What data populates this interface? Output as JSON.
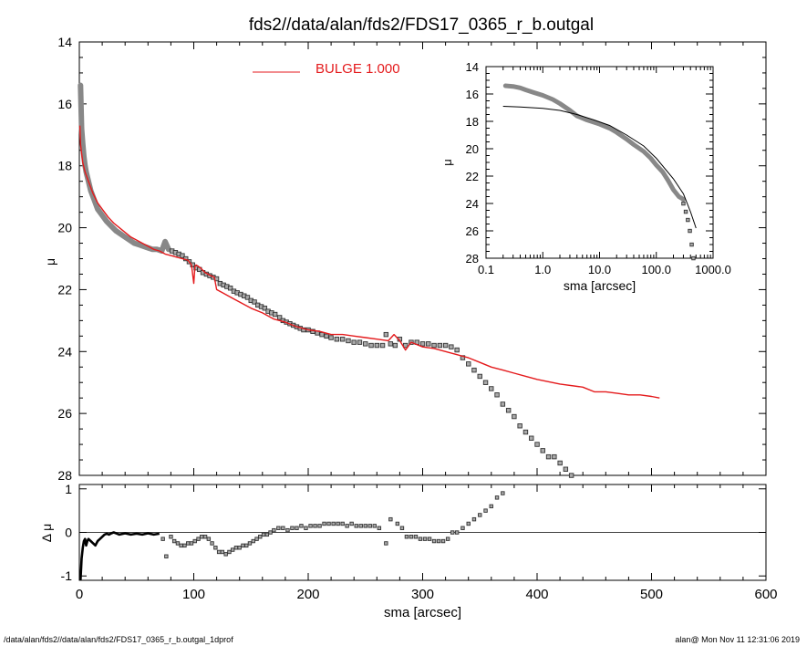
{
  "title": "fds2//data/alan/fds2/FDS17_0365_r_b.outgal",
  "footer": {
    "left": "/data/alan/fds2//data/alan/fds2/FDS17_0365_r_b.outgal_1dprof",
    "right": "alan@  Mon Nov 11 12:31:06 2019"
  },
  "chart_data": [
    {
      "type": "scatter",
      "name": "main",
      "xlabel": "sma [arcsec]",
      "ylabel": "μ",
      "xlim": [
        0,
        600
      ],
      "ylim": [
        28,
        14
      ],
      "x_ticks": [
        0,
        100,
        200,
        300,
        400,
        500,
        600
      ],
      "y_ticks": [
        14,
        16,
        18,
        20,
        22,
        24,
        26,
        28
      ],
      "legend": {
        "label": "BULGE  1.000",
        "color": "#e41a1c",
        "position": "top"
      },
      "colors": {
        "model": "#e41a1c",
        "data": "#555555",
        "marker_fill": "#aaaaaa"
      },
      "series": [
        {
          "kind": "data-points",
          "x": [
            1,
            2,
            3,
            4,
            5,
            6,
            8,
            10,
            13,
            16,
            20,
            24,
            28,
            32,
            36,
            40,
            44,
            48,
            52,
            56,
            60,
            64,
            68,
            72,
            75,
            78,
            81,
            84,
            87,
            90,
            93,
            96,
            99,
            102,
            105,
            108,
            111,
            114,
            117,
            120,
            123,
            126,
            129,
            132,
            135,
            138,
            141,
            144,
            147,
            150,
            153,
            156,
            159,
            162,
            165,
            168,
            171,
            175,
            178,
            181,
            184,
            187,
            190,
            193,
            196,
            200,
            204,
            208,
            212,
            216,
            220,
            225,
            230,
            235,
            240,
            245,
            250,
            255,
            260,
            265,
            268,
            272,
            276,
            280,
            285,
            290,
            295,
            300,
            305,
            310,
            315,
            320,
            325,
            330,
            335,
            340,
            345,
            350,
            355,
            360,
            365,
            370,
            375,
            380,
            385,
            390,
            395,
            400,
            405,
            410,
            415,
            420,
            425,
            430
          ],
          "y": [
            15.4,
            16.8,
            17.3,
            17.7,
            18.0,
            18.2,
            18.5,
            18.8,
            19.1,
            19.4,
            19.6,
            19.8,
            19.95,
            20.1,
            20.2,
            20.3,
            20.4,
            20.5,
            20.55,
            20.6,
            20.65,
            20.7,
            20.7,
            20.75,
            20.45,
            20.7,
            20.75,
            20.8,
            20.85,
            20.9,
            21.0,
            21.1,
            21.2,
            21.3,
            21.35,
            21.45,
            21.5,
            21.55,
            21.6,
            21.65,
            21.8,
            21.85,
            21.9,
            21.95,
            22.05,
            22.1,
            22.15,
            22.2,
            22.25,
            22.35,
            22.4,
            22.5,
            22.55,
            22.6,
            22.7,
            22.75,
            22.8,
            22.9,
            23.0,
            23.05,
            23.1,
            23.15,
            23.2,
            23.25,
            23.3,
            23.3,
            23.35,
            23.4,
            23.45,
            23.5,
            23.55,
            23.6,
            23.6,
            23.65,
            23.7,
            23.7,
            23.75,
            23.8,
            23.8,
            23.8,
            23.45,
            23.75,
            23.8,
            23.6,
            23.8,
            23.7,
            23.7,
            23.75,
            23.75,
            23.8,
            23.8,
            23.8,
            23.85,
            23.95,
            24.2,
            24.4,
            24.6,
            24.8,
            25.0,
            25.2,
            25.4,
            25.7,
            25.9,
            26.1,
            26.4,
            26.6,
            26.8,
            27.0,
            27.2,
            27.4,
            27.4,
            27.6,
            27.8,
            28.0
          ]
        },
        {
          "kind": "model",
          "x": [
            0.5,
            1,
            2,
            3,
            5,
            8,
            12,
            16,
            20,
            25,
            30,
            35,
            40,
            45,
            50,
            55,
            60,
            65,
            70,
            75,
            80,
            85,
            90,
            95,
            98,
            100,
            101,
            102,
            104,
            106,
            110,
            115,
            118,
            120,
            125,
            130,
            140,
            150,
            160,
            170,
            180,
            190,
            200,
            210,
            220,
            230,
            240,
            250,
            260,
            270,
            275,
            280,
            285,
            290,
            300,
            310,
            320,
            330,
            340,
            350,
            360,
            370,
            380,
            390,
            400,
            420,
            440,
            450,
            460,
            470,
            480,
            490,
            500,
            507
          ],
          "y": [
            16.7,
            17.3,
            17.6,
            17.9,
            18.2,
            18.5,
            18.9,
            19.2,
            19.4,
            19.65,
            19.85,
            20.0,
            20.15,
            20.3,
            20.4,
            20.5,
            20.6,
            20.7,
            20.75,
            20.85,
            20.9,
            20.95,
            21.0,
            21.05,
            21.2,
            21.8,
            21.25,
            21.2,
            21.25,
            21.3,
            21.45,
            21.55,
            21.6,
            22.0,
            22.1,
            22.2,
            22.4,
            22.6,
            22.75,
            22.95,
            23.05,
            23.2,
            23.3,
            23.35,
            23.45,
            23.45,
            23.5,
            23.55,
            23.6,
            23.65,
            23.45,
            23.65,
            23.95,
            23.7,
            23.85,
            23.9,
            24.0,
            24.1,
            24.2,
            24.35,
            24.5,
            24.6,
            24.7,
            24.8,
            24.9,
            25.05,
            25.15,
            25.3,
            25.3,
            25.35,
            25.4,
            25.4,
            25.45,
            25.5
          ]
        }
      ]
    },
    {
      "type": "scatter",
      "name": "residual",
      "xlabel": "sma [arcsec]",
      "ylabel": "Δ μ",
      "xlim": [
        0,
        600
      ],
      "ylim": [
        -1.1,
        1.1
      ],
      "x_ticks": [
        0,
        100,
        200,
        300,
        400,
        500,
        600
      ],
      "x_tick_labels": [
        "0",
        "100",
        "200",
        "300",
        "400",
        "500",
        "600"
      ],
      "y_ticks": [
        -1,
        0,
        1
      ],
      "series": [
        {
          "kind": "residual-line",
          "x": [
            1,
            2,
            3,
            4,
            5,
            6,
            7,
            8,
            10,
            12,
            14,
            16,
            18,
            20,
            22,
            24,
            26,
            28,
            30,
            35,
            40,
            45,
            50,
            55,
            60,
            65,
            70
          ],
          "y": [
            -1.1,
            -0.6,
            -0.35,
            -0.2,
            -0.15,
            -0.3,
            -0.2,
            -0.15,
            -0.2,
            -0.25,
            -0.3,
            -0.2,
            -0.15,
            -0.1,
            -0.05,
            -0.03,
            -0.05,
            -0.02,
            0.0,
            -0.05,
            -0.02,
            -0.05,
            -0.03,
            -0.05,
            -0.02,
            -0.05,
            -0.03
          ]
        },
        {
          "kind": "residual-points",
          "x": [
            73,
            76,
            80,
            83,
            86,
            89,
            92,
            95,
            98,
            101,
            104,
            107,
            110,
            113,
            116,
            119,
            122,
            125,
            128,
            131,
            134,
            137,
            140,
            143,
            146,
            149,
            152,
            155,
            158,
            161,
            164,
            167,
            170,
            174,
            178,
            182,
            186,
            190,
            194,
            198,
            202,
            206,
            210,
            214,
            218,
            222,
            226,
            230,
            234,
            238,
            242,
            246,
            250,
            254,
            258,
            262,
            268,
            272,
            278,
            282,
            286,
            290,
            294,
            298,
            302,
            306,
            310,
            314,
            318,
            322,
            326,
            330,
            335,
            340,
            345,
            350,
            355,
            360,
            365,
            370
          ],
          "y": [
            -0.15,
            -0.55,
            -0.1,
            -0.2,
            -0.25,
            -0.3,
            -0.3,
            -0.25,
            -0.25,
            -0.2,
            -0.15,
            -0.1,
            -0.1,
            -0.15,
            -0.25,
            -0.35,
            -0.45,
            -0.45,
            -0.5,
            -0.45,
            -0.4,
            -0.35,
            -0.35,
            -0.3,
            -0.3,
            -0.25,
            -0.2,
            -0.15,
            -0.1,
            -0.05,
            -0.05,
            0.0,
            0.05,
            0.1,
            0.1,
            0.05,
            0.1,
            0.1,
            0.15,
            0.1,
            0.15,
            0.15,
            0.15,
            0.2,
            0.2,
            0.2,
            0.2,
            0.2,
            0.15,
            0.2,
            0.15,
            0.15,
            0.15,
            0.15,
            0.15,
            0.1,
            -0.25,
            0.3,
            0.2,
            0.1,
            -0.1,
            -0.1,
            -0.1,
            -0.15,
            -0.15,
            -0.15,
            -0.2,
            -0.2,
            -0.2,
            -0.15,
            0.0,
            0.0,
            0.1,
            0.2,
            0.3,
            0.4,
            0.5,
            0.6,
            0.8,
            0.9
          ]
        }
      ]
    },
    {
      "type": "scatter",
      "name": "inset",
      "xscale": "log",
      "xlabel": "sma [arcsec]",
      "ylabel": "μ",
      "xlim": [
        0.1,
        1000
      ],
      "ylim": [
        28,
        14
      ],
      "x_ticks": [
        0.1,
        1,
        10,
        100,
        1000
      ],
      "x_tick_labels": [
        "0.1",
        "1.0",
        "10.0",
        "100.0",
        "1000.0"
      ],
      "y_ticks": [
        14,
        16,
        18,
        20,
        22,
        24,
        26,
        28
      ],
      "series": [
        {
          "kind": "data-band",
          "x": [
            0.22,
            0.3,
            0.4,
            0.5,
            0.7,
            1.0,
            1.5,
            2.0,
            3.0,
            4.0,
            6.0,
            10,
            15,
            20,
            30,
            40,
            60,
            80,
            100,
            130,
            160,
            200,
            250,
            300
          ],
          "y": [
            15.4,
            15.45,
            15.55,
            15.7,
            15.9,
            16.1,
            16.4,
            16.7,
            17.2,
            17.6,
            17.9,
            18.2,
            18.5,
            18.8,
            19.3,
            19.7,
            20.2,
            20.7,
            21.2,
            21.7,
            22.3,
            23.0,
            23.5,
            23.7
          ]
        },
        {
          "kind": "data-points",
          "x": [
            300,
            330,
            360,
            390,
            420,
            450
          ],
          "y": [
            24.0,
            24.6,
            25.2,
            26.0,
            27.0,
            28.0
          ]
        },
        {
          "kind": "model",
          "x": [
            0.2,
            0.4,
            1,
            2,
            4,
            8,
            15,
            30,
            60,
            100,
            200,
            300,
            400,
            500
          ],
          "y": [
            16.9,
            16.95,
            17.05,
            17.2,
            17.5,
            17.9,
            18.3,
            19.0,
            19.8,
            20.7,
            22.2,
            23.3,
            24.6,
            25.8
          ]
        }
      ]
    }
  ]
}
